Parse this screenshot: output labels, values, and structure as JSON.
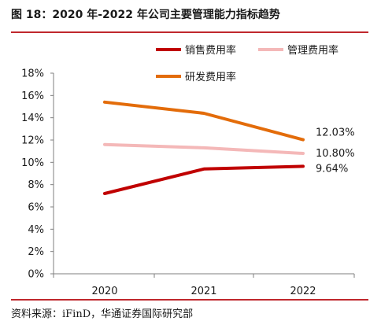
{
  "title": "图 18：2020 年-2022 年公司主要管理能力指标趋势",
  "source": "资料来源：iFinD，华通证券国际研究部",
  "chart_data": {
    "type": "line",
    "categories": [
      "2020",
      "2021",
      "2022"
    ],
    "y_ticks": [
      "0%",
      "2%",
      "4%",
      "6%",
      "8%",
      "10%",
      "12%",
      "14%",
      "16%",
      "18%"
    ],
    "ylim": [
      0,
      18
    ],
    "grid": false,
    "legend_position": "top-right",
    "series": [
      {
        "name": "销售费用率",
        "color": "#c00000",
        "values": [
          7.2,
          9.4,
          9.64
        ],
        "end_label": "9.64%"
      },
      {
        "name": "管理费用率",
        "color": "#f4b8b8",
        "values": [
          11.6,
          11.3,
          10.8
        ],
        "end_label": "10.80%"
      },
      {
        "name": "研发费用率",
        "color": "#e36c0a",
        "values": [
          15.4,
          14.4,
          12.03
        ],
        "end_label": "12.03%"
      }
    ]
  }
}
